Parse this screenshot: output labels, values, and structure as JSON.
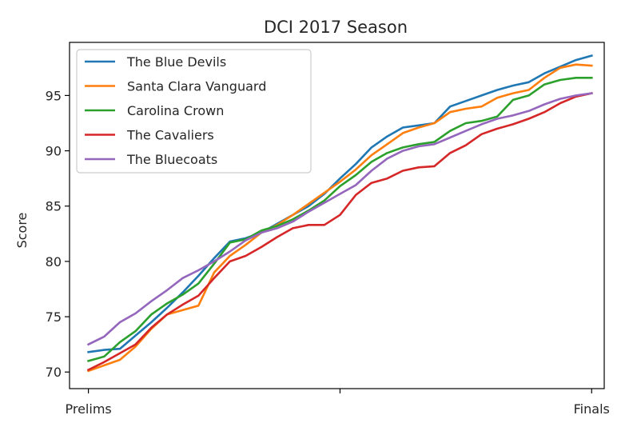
{
  "chart_data": {
    "type": "line",
    "title": "DCI 2017 Season",
    "xlabel": "",
    "ylabel": "Score",
    "xlim": [
      -0.6,
      16.4
    ],
    "ylim": [
      68.5,
      99.8
    ],
    "x_ticks": [
      {
        "x": 0,
        "label": "Prelims"
      },
      {
        "x": 8,
        "label": ""
      },
      {
        "x": 16,
        "label": "Finals"
      }
    ],
    "y_ticks": [
      70,
      75,
      80,
      85,
      90,
      95
    ],
    "grid": false,
    "legend_position": "top-left",
    "series": [
      {
        "name": "The Blue Devils",
        "color": "#1f77b4",
        "x": [
          0,
          0.5,
          1,
          1.5,
          2,
          2.5,
          3,
          3.5,
          4,
          4.5,
          5,
          5.5,
          6,
          6.5,
          7,
          7.5,
          8,
          8.5,
          9,
          9.5,
          10,
          10.5,
          11,
          11.5,
          12,
          12.5,
          13,
          13.5,
          14,
          14.5,
          15,
          15.5,
          16
        ],
        "y": [
          71.8,
          72.0,
          72.1,
          73.3,
          74.5,
          75.8,
          77.2,
          78.7,
          80.3,
          81.8,
          82.1,
          82.6,
          83.4,
          84.2,
          85.0,
          86.1,
          87.5,
          88.8,
          90.3,
          91.3,
          92.1,
          92.3,
          92.5,
          94.0,
          94.5,
          95.0,
          95.5,
          95.9,
          96.2,
          97.0,
          97.6,
          98.2,
          98.6
        ]
      },
      {
        "name": "Santa Clara Vanguard",
        "color": "#ff7f0e",
        "x": [
          0,
          0.5,
          1,
          1.5,
          2,
          2.5,
          3,
          3.5,
          4,
          4.5,
          5,
          5.5,
          6,
          6.5,
          7,
          7.5,
          8,
          8.5,
          9,
          9.5,
          10,
          10.5,
          11,
          11.5,
          12,
          12.5,
          13,
          13.5,
          14,
          14.5,
          15,
          15.5,
          16
        ],
        "y": [
          70.1,
          70.6,
          71.1,
          72.3,
          73.9,
          75.2,
          75.6,
          76.0,
          79.0,
          80.5,
          81.5,
          82.6,
          83.3,
          84.2,
          85.2,
          86.2,
          87.2,
          88.3,
          89.6,
          90.6,
          91.6,
          92.1,
          92.5,
          93.5,
          93.8,
          94.0,
          94.8,
          95.2,
          95.5,
          96.6,
          97.5,
          97.8,
          97.7
        ]
      },
      {
        "name": "Carolina Crown",
        "color": "#2ca02c",
        "x": [
          0,
          0.5,
          1,
          1.5,
          2,
          2.5,
          3,
          3.5,
          4,
          4.5,
          5,
          5.5,
          6,
          6.5,
          7,
          7.5,
          8,
          8.5,
          9,
          9.5,
          10,
          10.5,
          11,
          11.5,
          12,
          12.5,
          13,
          13.5,
          14,
          14.5,
          15,
          15.5,
          16
        ],
        "y": [
          71.0,
          71.4,
          72.7,
          73.7,
          75.2,
          76.2,
          77.0,
          78.0,
          79.8,
          81.7,
          82.0,
          82.8,
          83.2,
          83.8,
          84.6,
          85.5,
          86.8,
          87.8,
          89.0,
          89.8,
          90.3,
          90.6,
          90.8,
          91.8,
          92.5,
          92.7,
          93.1,
          94.6,
          95.0,
          96.0,
          96.4,
          96.6,
          96.6
        ]
      },
      {
        "name": "The Cavaliers",
        "color": "#d62728",
        "x": [
          0,
          0.5,
          1,
          1.5,
          2,
          2.5,
          3,
          3.5,
          4,
          4.5,
          5,
          5.5,
          6,
          6.5,
          7,
          7.5,
          8,
          8.5,
          9,
          9.5,
          10,
          10.5,
          11,
          11.5,
          12,
          12.5,
          13,
          13.5,
          14,
          14.5,
          15,
          15.5,
          16
        ],
        "y": [
          70.2,
          70.9,
          71.7,
          72.5,
          74.0,
          75.2,
          76.1,
          76.9,
          78.5,
          80.0,
          80.5,
          81.3,
          82.2,
          83.0,
          83.3,
          83.3,
          84.2,
          86.0,
          87.1,
          87.5,
          88.2,
          88.5,
          88.6,
          89.8,
          90.5,
          91.5,
          92.0,
          92.4,
          92.9,
          93.5,
          94.3,
          94.9,
          95.2
        ]
      },
      {
        "name": "The Bluecoats",
        "color": "#9467bd",
        "x": [
          0,
          0.5,
          1,
          1.5,
          2,
          2.5,
          3,
          3.5,
          4,
          4.5,
          5,
          5.5,
          6,
          6.5,
          7,
          7.5,
          8,
          8.5,
          9,
          9.5,
          10,
          10.5,
          11,
          11.5,
          12,
          12.5,
          13,
          13.5,
          14,
          14.5,
          15,
          15.5,
          16
        ],
        "y": [
          72.5,
          73.2,
          74.5,
          75.3,
          76.4,
          77.4,
          78.5,
          79.2,
          80.0,
          80.9,
          81.9,
          82.6,
          83.0,
          83.6,
          84.5,
          85.3,
          86.1,
          86.9,
          88.2,
          89.3,
          90.0,
          90.4,
          90.6,
          91.2,
          91.8,
          92.4,
          92.9,
          93.2,
          93.6,
          94.2,
          94.7,
          95.0,
          95.2
        ]
      }
    ]
  }
}
